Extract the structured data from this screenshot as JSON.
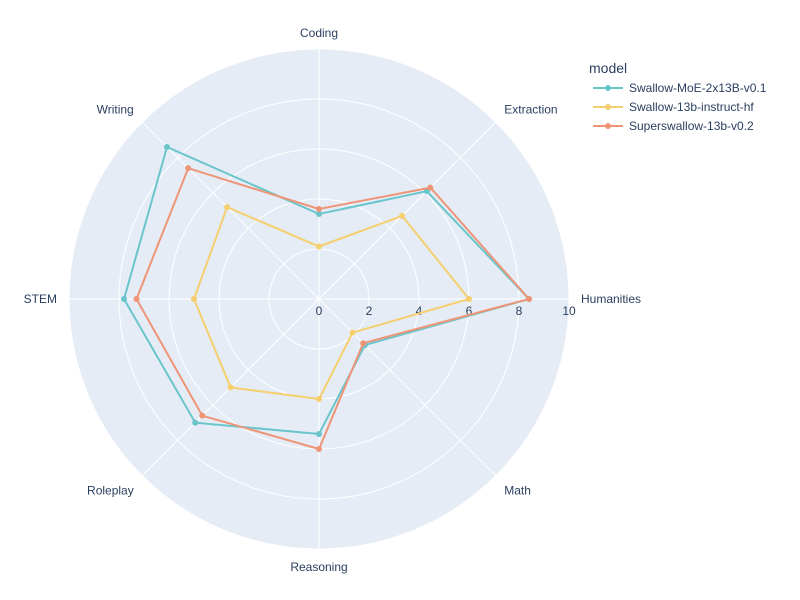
{
  "chart_data": {
    "type": "radar",
    "categories": [
      "Humanities",
      "Extraction",
      "Coding",
      "Writing",
      "STEM",
      "Roleplay",
      "Reasoning",
      "Math"
    ],
    "radial_range": [
      0,
      10
    ],
    "radial_ticks": [
      0,
      2,
      4,
      6,
      8,
      10
    ],
    "legend": {
      "title": "model",
      "placement": "top-right"
    },
    "series": [
      {
        "name": "Swallow-MoE-2x13B-v0.1",
        "color": "#6ac5cb",
        "values": [
          8.4,
          6.1,
          3.4,
          8.6,
          7.8,
          7.0,
          5.4,
          2.6
        ]
      },
      {
        "name": "Swallow-13b-instruct-hf",
        "color": "#f5cf6e",
        "values": [
          6.0,
          4.7,
          2.1,
          5.2,
          5.0,
          5.0,
          4.0,
          1.9
        ]
      },
      {
        "name": "Superswallow-13b-v0.2",
        "color": "#ee9577",
        "values": [
          8.4,
          6.3,
          3.6,
          7.4,
          7.3,
          6.6,
          6.0,
          2.5
        ]
      }
    ]
  }
}
